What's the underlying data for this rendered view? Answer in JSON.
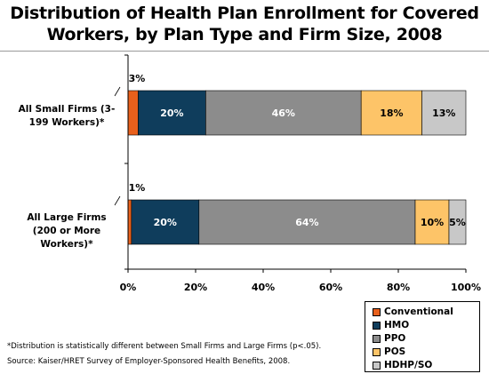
{
  "title_line1": "Distribution of Health Plan Enrollment for Covered",
  "title_line2": "Workers, by Plan Type and Firm Size, 2008",
  "footnote": "*Distribution is statistically different between Small Firms and Large Firms (p<.05).",
  "source": "Source:  Kaiser/HRET Survey of Employer-Sponsored Health Benefits, 2008.",
  "chart_data": {
    "type": "bar",
    "orientation": "horizontal",
    "stacked": true,
    "categories": [
      "All Small Firms (3-199 Workers)*",
      "All Large Firms (200 or More Workers)*"
    ],
    "series": [
      {
        "name": "Conventional",
        "color": "#e8601c",
        "values": [
          3,
          1
        ],
        "labels": [
          "3%",
          "1%"
        ]
      },
      {
        "name": "HMO",
        "color": "#0f3d5c",
        "values": [
          20,
          20
        ],
        "labels": [
          "20%",
          "20%"
        ]
      },
      {
        "name": "PPO",
        "color": "#8c8c8c",
        "values": [
          46,
          64
        ],
        "labels": [
          "46%",
          "64%"
        ]
      },
      {
        "name": "POS",
        "color": "#fdc468",
        "values": [
          18,
          10
        ],
        "labels": [
          "18%",
          "10%"
        ]
      },
      {
        "name": "HDHP/SO",
        "color": "#c8c8c8",
        "values": [
          13,
          5
        ],
        "labels": [
          "13%",
          "5%"
        ]
      }
    ],
    "label_colors": [
      "#000000",
      "#ffffff",
      "#ffffff",
      "#000000",
      "#000000"
    ],
    "xlim": [
      0,
      100
    ],
    "xticks": [
      "0%",
      "20%",
      "40%",
      "60%",
      "80%",
      "100%"
    ],
    "grid": false,
    "legend_position": "bottom-right"
  }
}
